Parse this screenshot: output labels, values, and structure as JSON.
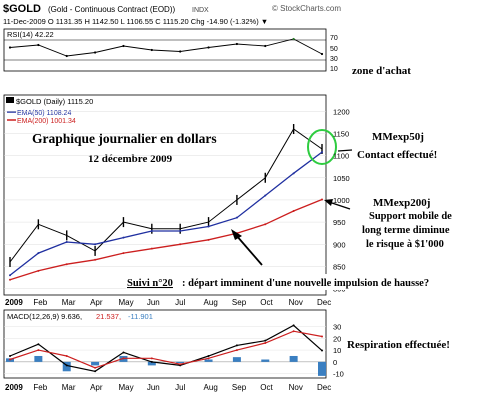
{
  "header": {
    "symbol": "$GOLD",
    "description": "(Gold - Continuous Contract (EOD))",
    "index_tag": "INDX",
    "source": "© StockCharts.com",
    "ohlc_line": "11-Dec-2009   O 1131.35  H 1142.50  L 1106.55  C 1115.20  Chg -14.90 (-1.32%) ▼"
  },
  "rsi_panel": {
    "label": "RSI(14) 42.22",
    "ticks": [
      "70",
      "50",
      "30",
      "10"
    ],
    "annotation": "zone d'achat"
  },
  "price_panel": {
    "legend_title": "$GOLD (Daily) 1115.20",
    "legend_ema50": "EMA(50) 1108.24",
    "legend_ema200": "EMA(200) 1001.34",
    "ticks": [
      "1200",
      "1150",
      "1100",
      "1050",
      "1000",
      "950",
      "900",
      "850",
      "800"
    ],
    "months": [
      "2009",
      "Feb",
      "Mar",
      "Apr",
      "May",
      "Jun",
      "Jul",
      "Aug",
      "Sep",
      "Oct",
      "Nov",
      "Dec"
    ],
    "title": "Graphique journalier en dollars",
    "date": "12 décembre 2009",
    "note_ema50_a": "MMexp50j",
    "note_ema50_b": "Contact effectué!",
    "note_ema200_a": "MMexp200j",
    "note_ema200_b": "Support mobile de",
    "note_ema200_c": "long terme diminue",
    "note_ema200_d": "le risque à $1'000",
    "follow_label": "Suivi n°20",
    "follow_text": ": départ imminent d'une nouvelle impulsion de hausse?"
  },
  "macd_panel": {
    "label_main": "MACD(12,26,9) 9.636,",
    "label_sig": "21.537,",
    "label_hist": "-11.901",
    "ticks": [
      "30",
      "20",
      "10",
      "0",
      "-10"
    ],
    "annotation": "Respiration effectuée!",
    "months": [
      "2009",
      "Feb",
      "Mar",
      "Apr",
      "May",
      "Jun",
      "Jul",
      "Aug",
      "Sep",
      "Oct",
      "Nov",
      "Dec"
    ]
  },
  "colors": {
    "price_bars": "#000000",
    "ema50": "#1f2fa0",
    "ema200": "#cc1f1f",
    "macd_line": "#000000",
    "signal_line": "#cc1f1f",
    "histogram": "#3a7fc1",
    "circle": "#2ecc40",
    "rsi_fill": "#2a7a2a"
  },
  "chart_data": [
    {
      "type": "line",
      "title": "RSI(14)",
      "x": [
        "Jan",
        "Feb",
        "Mar",
        "Apr",
        "May",
        "Jun",
        "Jul",
        "Aug",
        "Sep",
        "Oct",
        "Nov",
        "Dec"
      ],
      "series": [
        {
          "name": "RSI(14)",
          "values": [
            55,
            60,
            38,
            45,
            58,
            50,
            47,
            55,
            62,
            58,
            72,
            42
          ]
        }
      ],
      "ylim": [
        10,
        90
      ]
    },
    {
      "type": "line",
      "title": "$GOLD (Daily)",
      "x": [
        "Jan",
        "Feb",
        "Mar",
        "Apr",
        "May",
        "Jun",
        "Jul",
        "Aug",
        "Sep",
        "Oct",
        "Nov",
        "Dec"
      ],
      "series": [
        {
          "name": "$GOLD",
          "values": [
            860,
            945,
            920,
            885,
            950,
            935,
            935,
            950,
            1000,
            1050,
            1160,
            1115
          ]
        },
        {
          "name": "EMA(50)",
          "values": [
            830,
            880,
            905,
            900,
            915,
            930,
            930,
            940,
            960,
            1010,
            1060,
            1108
          ]
        },
        {
          "name": "EMA(200)",
          "values": [
            820,
            840,
            855,
            865,
            880,
            890,
            900,
            910,
            925,
            945,
            975,
            1001
          ]
        }
      ],
      "ylim": [
        790,
        1230
      ]
    },
    {
      "type": "line",
      "title": "MACD(12,26,9)",
      "x": [
        "Jan",
        "Feb",
        "Mar",
        "Apr",
        "May",
        "Jun",
        "Jul",
        "Aug",
        "Sep",
        "Oct",
        "Nov",
        "Dec"
      ],
      "series": [
        {
          "name": "MACD",
          "values": [
            5,
            15,
            -3,
            -8,
            8,
            0,
            -3,
            5,
            14,
            18,
            31,
            9.6
          ]
        },
        {
          "name": "Signal",
          "values": [
            2,
            10,
            5,
            -5,
            3,
            3,
            -2,
            3,
            10,
            16,
            26,
            21.5
          ]
        }
      ],
      "ylim": [
        -12,
        33
      ]
    }
  ]
}
